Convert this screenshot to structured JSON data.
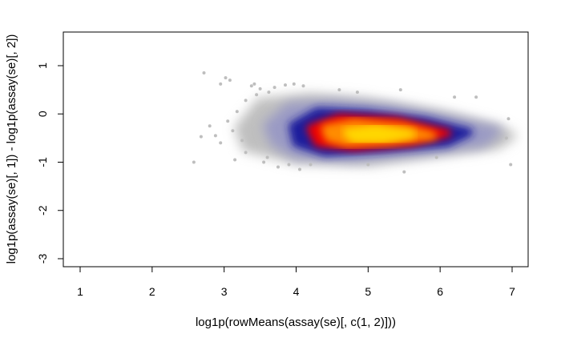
{
  "chart_data": {
    "type": "scatter",
    "style": "smooth-density scatter (MA plot)",
    "xlabel": "log1p(rowMeans(assay(se)[, c(1, 2)]))",
    "ylabel": "log1p(assay(se)[, 1]) - log1p(assay(se)[, 2])",
    "xlim": [
      0.8,
      7.25
    ],
    "ylim": [
      -3.2,
      1.7
    ],
    "xticks": [
      1,
      2,
      3,
      4,
      5,
      6,
      7
    ],
    "yticks": [
      1,
      0,
      -1,
      -2,
      -3
    ],
    "grid": false,
    "legend": "none",
    "density_colors": [
      "#bebebe",
      "#8888c0",
      "#1a1a9e",
      "#00008b",
      "#ff0000",
      "#ff6a00",
      "#ffd700"
    ],
    "density_bands": [
      {
        "level": "low",
        "color": "#bfbfbf",
        "x": [
          [
            3.2,
            -0.3
          ],
          [
            3.5,
            0.25
          ],
          [
            4.2,
            0.35
          ],
          [
            5.0,
            0.25
          ],
          [
            6.0,
            0.0
          ],
          [
            6.8,
            -0.3
          ],
          [
            7.0,
            -0.45
          ],
          [
            6.8,
            -0.65
          ],
          [
            6.0,
            -0.8
          ],
          [
            5.0,
            -1.0
          ],
          [
            4.0,
            -0.95
          ],
          [
            3.3,
            -0.7
          ]
        ]
      },
      {
        "level": "mid",
        "color": "#9a9ac4",
        "x": [
          [
            3.6,
            -0.25
          ],
          [
            3.9,
            0.15
          ],
          [
            4.5,
            0.2
          ],
          [
            5.3,
            0.1
          ],
          [
            6.2,
            -0.15
          ],
          [
            6.8,
            -0.35
          ],
          [
            6.6,
            -0.6
          ],
          [
            5.8,
            -0.75
          ],
          [
            4.8,
            -0.9
          ],
          [
            4.0,
            -0.85
          ],
          [
            3.7,
            -0.6
          ]
        ]
      },
      {
        "level": "high",
        "color": "#1c1c9c",
        "x": [
          [
            3.95,
            -0.25
          ],
          [
            4.3,
            0.05
          ],
          [
            5.0,
            0.0
          ],
          [
            5.8,
            -0.15
          ],
          [
            6.4,
            -0.38
          ],
          [
            6.1,
            -0.6
          ],
          [
            5.2,
            -0.72
          ],
          [
            4.4,
            -0.8
          ],
          [
            4.0,
            -0.6
          ]
        ]
      },
      {
        "level": "peak-edge",
        "color": "#ee0000",
        "x": [
          [
            4.2,
            -0.3
          ],
          [
            4.6,
            -0.08
          ],
          [
            5.4,
            -0.15
          ],
          [
            6.1,
            -0.4
          ],
          [
            5.6,
            -0.58
          ],
          [
            4.8,
            -0.68
          ],
          [
            4.3,
            -0.6
          ]
        ]
      },
      {
        "level": "peak",
        "color": "#ff8c00",
        "x": [
          [
            4.4,
            -0.3
          ],
          [
            4.8,
            -0.18
          ],
          [
            5.5,
            -0.28
          ],
          [
            5.9,
            -0.45
          ],
          [
            5.3,
            -0.56
          ],
          [
            4.7,
            -0.6
          ],
          [
            4.45,
            -0.5
          ]
        ]
      },
      {
        "level": "core",
        "color": "#ffd700",
        "x": [
          [
            4.7,
            -0.38
          ],
          [
            5.1,
            -0.3
          ],
          [
            5.6,
            -0.42
          ],
          [
            5.2,
            -0.53
          ],
          [
            4.8,
            -0.52
          ]
        ]
      }
    ],
    "outliers": [
      [
        2.58,
        -1.0
      ],
      [
        2.72,
        0.85
      ],
      [
        2.68,
        -0.47
      ],
      [
        2.8,
        -0.25
      ],
      [
        2.95,
        0.62
      ],
      [
        3.02,
        0.75
      ],
      [
        3.08,
        0.7
      ],
      [
        2.88,
        -0.45
      ],
      [
        3.15,
        -0.95
      ],
      [
        3.25,
        -0.55
      ],
      [
        3.38,
        0.58
      ],
      [
        3.42,
        0.62
      ],
      [
        3.5,
        0.52
      ],
      [
        3.55,
        -1.0
      ],
      [
        3.62,
        0.45
      ],
      [
        3.7,
        0.55
      ],
      [
        3.75,
        -1.1
      ],
      [
        3.85,
        0.6
      ],
      [
        3.9,
        -1.05
      ],
      [
        3.97,
        0.62
      ],
      [
        4.05,
        -1.15
      ],
      [
        4.1,
        0.58
      ],
      [
        4.2,
        -1.05
      ],
      [
        4.6,
        0.5
      ],
      [
        4.85,
        0.45
      ],
      [
        5.45,
        0.5
      ],
      [
        5.0,
        -1.05
      ],
      [
        5.5,
        -1.2
      ],
      [
        5.95,
        -0.9
      ],
      [
        6.2,
        0.35
      ],
      [
        6.5,
        0.35
      ],
      [
        6.95,
        -0.1
      ],
      [
        6.98,
        -1.05
      ],
      [
        6.92,
        -0.5
      ],
      [
        3.3,
        0.28
      ],
      [
        3.18,
        0.05
      ],
      [
        3.05,
        -0.15
      ],
      [
        2.95,
        -0.6
      ],
      [
        3.12,
        -0.35
      ],
      [
        3.3,
        -0.8
      ],
      [
        3.45,
        0.4
      ],
      [
        3.6,
        -0.9
      ]
    ]
  }
}
